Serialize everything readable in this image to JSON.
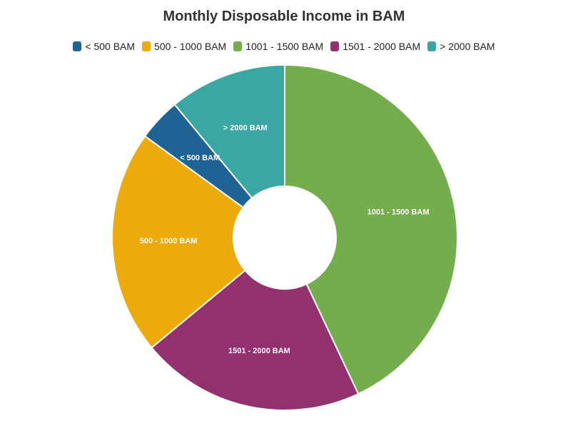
{
  "chart_data": {
    "type": "pie",
    "title": "Monthly Disposable Income in BAM",
    "legend_position": "top",
    "categories": [
      "< 500 BAM",
      "500 - 1000 BAM",
      "1001 - 1500 BAM",
      "1501 - 2000 BAM",
      "> 2000 BAM"
    ],
    "values": [
      4,
      21,
      43,
      21,
      11
    ],
    "colors": [
      "#1f6394",
      "#ecab0b",
      "#74ad4b",
      "#93316e",
      "#3aa7a3"
    ],
    "donut": true
  }
}
